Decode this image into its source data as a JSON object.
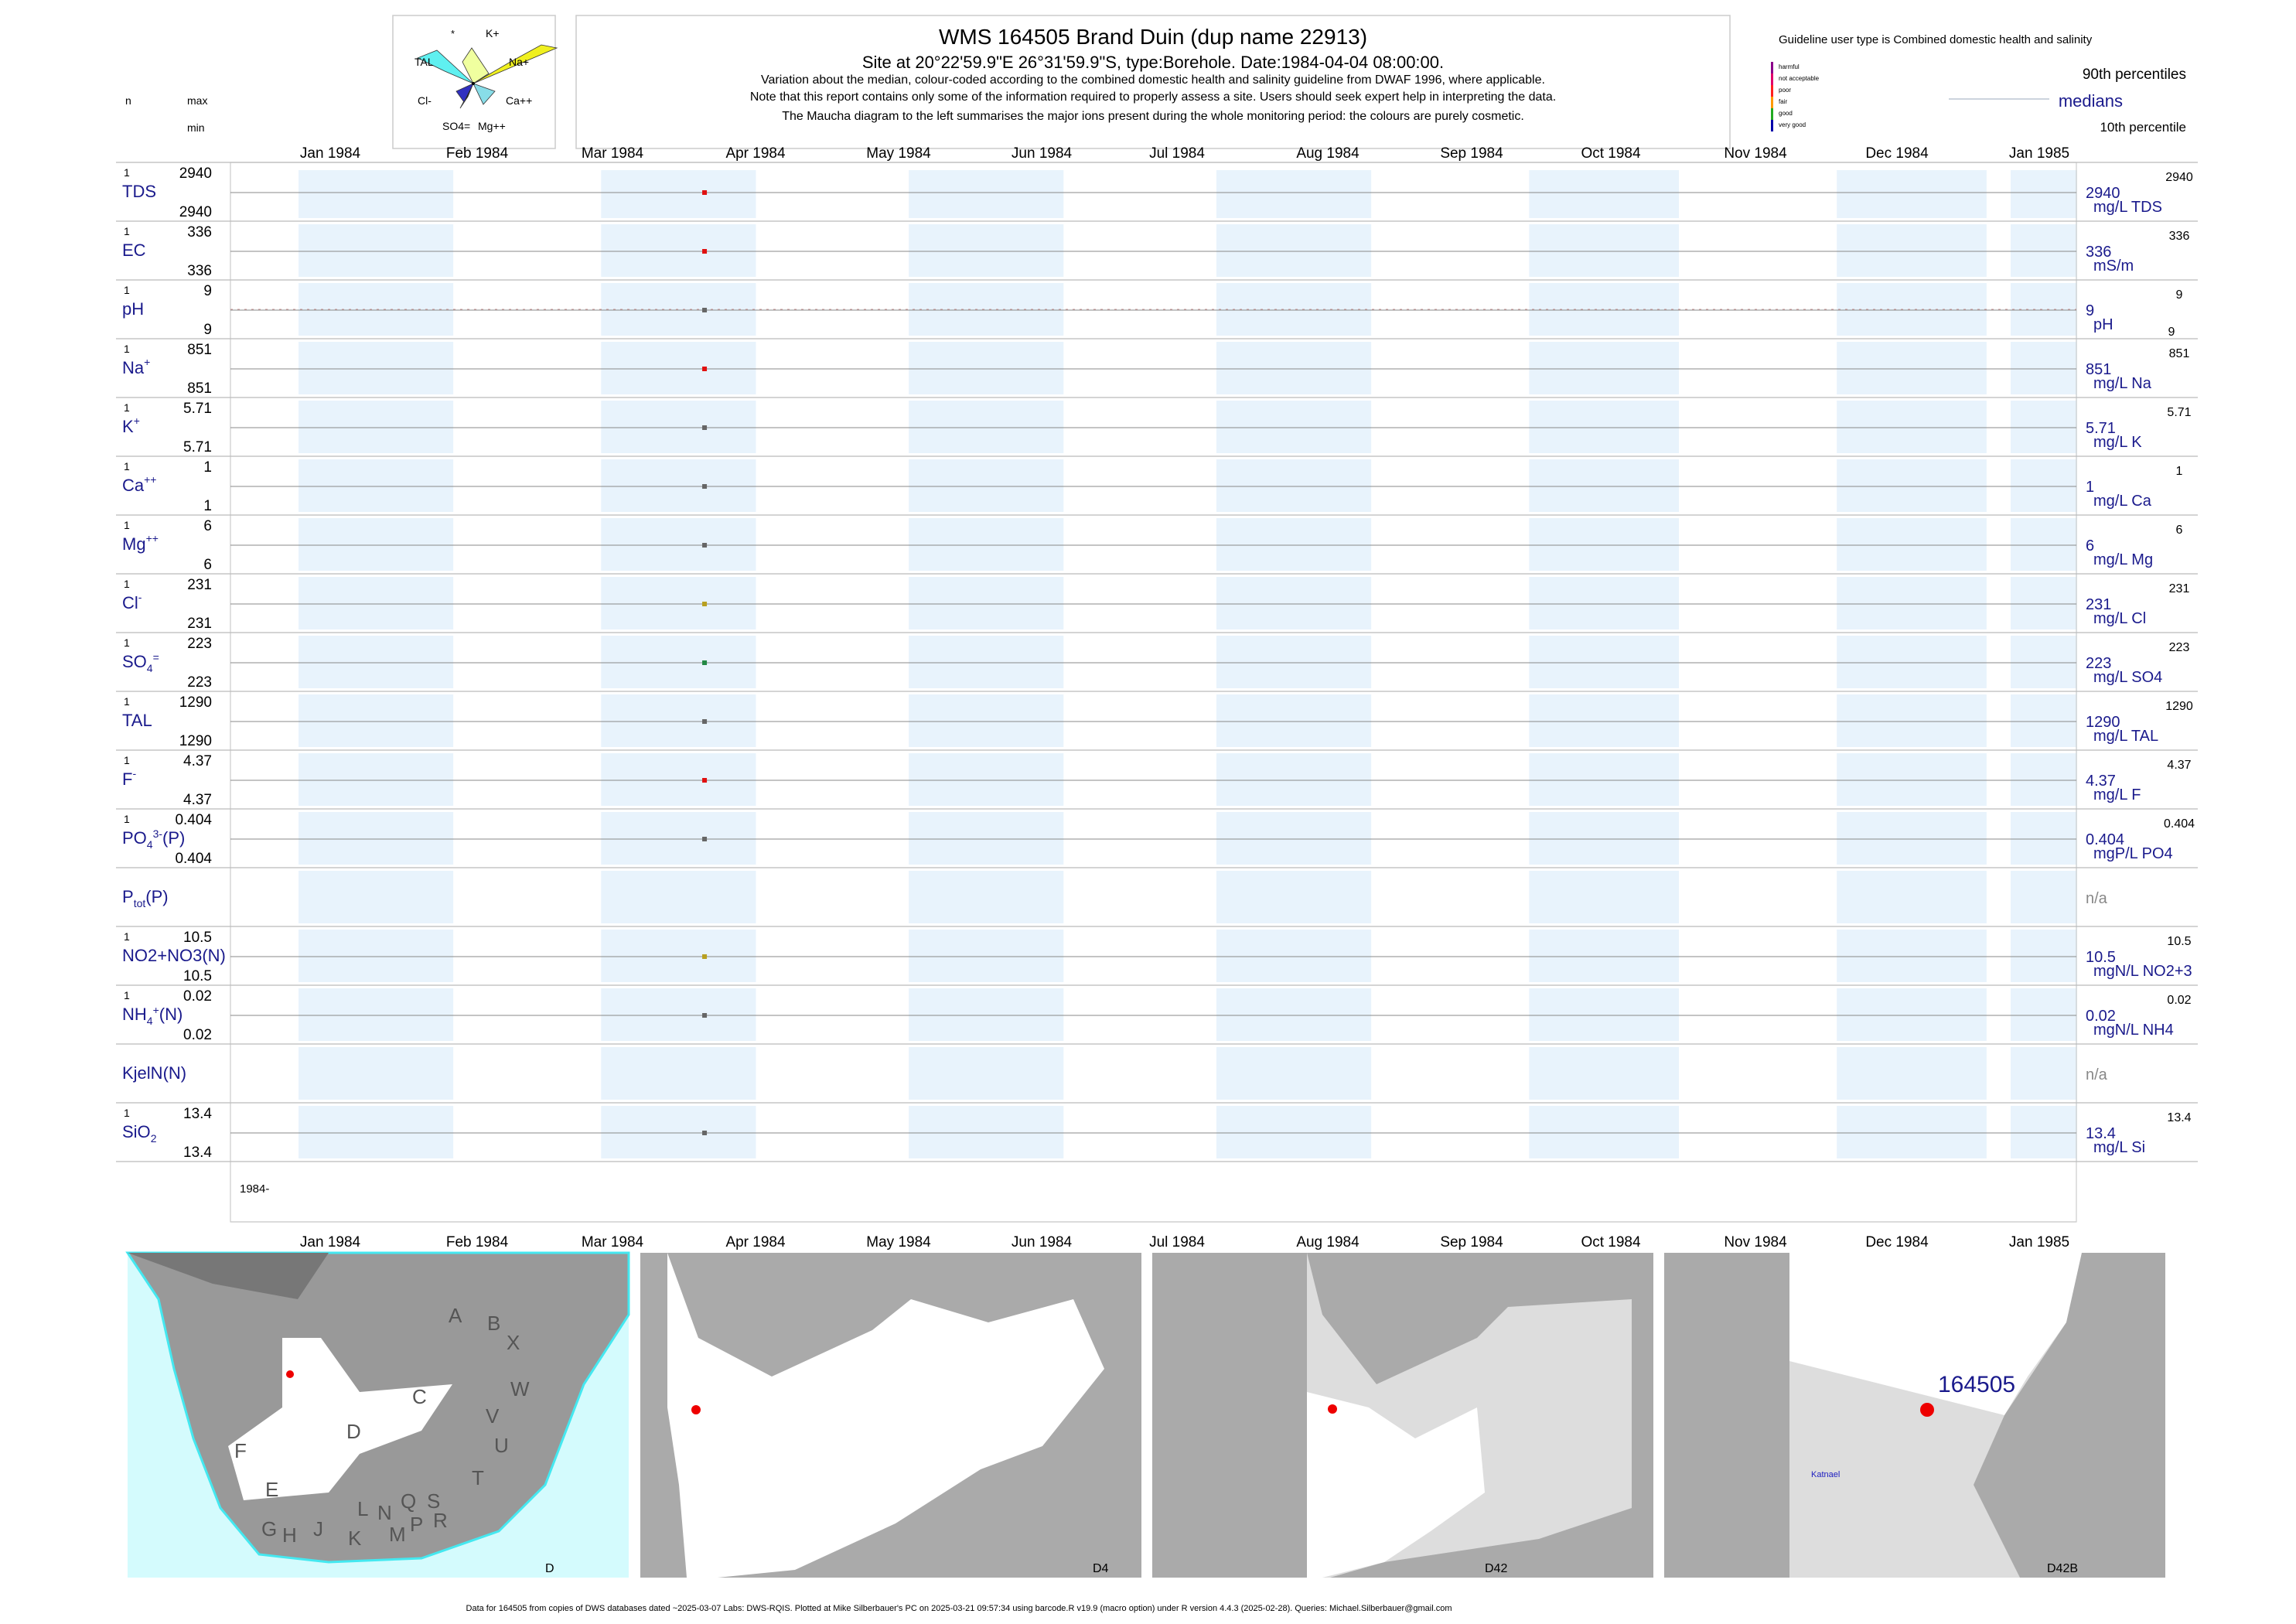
{
  "header": {
    "title": "WMS 164505  Brand Duin (dup name 22913)",
    "subtitle": "Site at 20°22'59.9\"E 26°31'59.9\"S, type:Borehole. Date:1984-04-04 08:00:00.",
    "notes": [
      "Variation about the median,  colour-coded according to the combined domestic health and salinity guideline from DWAF 1996, where applicable.",
      "Note that this report contains only some of the information required to properly assess a site. Users should seek expert help in interpreting the data.",
      "The Maucha diagram to the left summarises the major ions present during the whole monitoring period: the colours are purely cosmetic."
    ]
  },
  "left_header": {
    "n": "n",
    "max": "max",
    "min": "min"
  },
  "maucha": {
    "labels": [
      "*",
      "K+",
      "TAL",
      "Na+",
      "Cl-",
      "Ca++",
      "SO4=",
      "Mg++"
    ]
  },
  "legend": {
    "guideline": "Guideline user type is Combined domestic health and salinity",
    "classes": [
      {
        "label": "harmful",
        "color": "#8b008b"
      },
      {
        "label": "not acceptable",
        "color": "#e0006a"
      },
      {
        "label": "poor",
        "color": "#ff2020"
      },
      {
        "label": "fair",
        "color": "#ff9900"
      },
      {
        "label": "good",
        "color": "#22aa22"
      },
      {
        "label": "very good",
        "color": "#0000aa"
      }
    ],
    "p90": "90th percentiles",
    "medians": "medians",
    "p10": "10th percentile"
  },
  "months": [
    "Jan 1984",
    "Feb 1984",
    "Mar 1984",
    "Apr 1984",
    "May 1984",
    "Jun 1984",
    "Jul 1984",
    "Aug 1984",
    "Sep 1984",
    "Oct 1984",
    "Nov 1984",
    "Dec 1984",
    "Jan 1985"
  ],
  "year_label": "1984-",
  "chart_data": {
    "type": "scatter",
    "x_range": [
      "1984-01-01",
      "1985-01-01"
    ],
    "sample_date": "1984-04-04",
    "series": [
      {
        "label": "TDS",
        "n": "1",
        "max": "2940",
        "min": "2940",
        "value": "2940",
        "unit": "mg/L TDS",
        "p90": "2940",
        "p10": "",
        "color": "#e01010"
      },
      {
        "label": "EC",
        "n": "1",
        "max": "336",
        "min": "336",
        "value": "336",
        "unit": "mS/m",
        "p90": "336",
        "p10": "",
        "color": "#e01010"
      },
      {
        "label": "pH",
        "n": "1",
        "max": "9",
        "min": "9",
        "value": "9",
        "unit": "pH",
        "p90": "9",
        "p10": "9",
        "color": "#666666"
      },
      {
        "label": "Na",
        "sup": "+",
        "n": "1",
        "max": "851",
        "min": "851",
        "value": "851",
        "unit": "mg/L Na",
        "p90": "851",
        "p10": "",
        "color": "#e01010"
      },
      {
        "label": "K",
        "sup": "+",
        "n": "1",
        "max": "5.71",
        "min": "5.71",
        "value": "5.71",
        "unit": "mg/L K",
        "p90": "5.71",
        "p10": "",
        "color": "#666666"
      },
      {
        "label": "Ca",
        "sup": "++",
        "n": "1",
        "max": "1",
        "min": "1",
        "value": "1",
        "unit": "mg/L Ca",
        "p90": "1",
        "p10": "",
        "color": "#666666"
      },
      {
        "label": "Mg",
        "sup": "++",
        "n": "1",
        "max": "6",
        "min": "6",
        "value": "6",
        "unit": "mg/L Mg",
        "p90": "6",
        "p10": "",
        "color": "#666666"
      },
      {
        "label": "Cl",
        "sup": "-",
        "n": "1",
        "max": "231",
        "min": "231",
        "value": "231",
        "unit": "mg/L Cl",
        "p90": "231",
        "p10": "",
        "color": "#b8a020"
      },
      {
        "label": "SO",
        "sub": "4",
        "sup": "=",
        "n": "1",
        "max": "223",
        "min": "223",
        "value": "223",
        "unit": "mg/L SO4",
        "p90": "223",
        "p10": "",
        "color": "#228844"
      },
      {
        "label": "TAL",
        "n": "1",
        "max": "1290",
        "min": "1290",
        "value": "1290",
        "unit": "mg/L TAL",
        "p90": "1290",
        "p10": "",
        "color": "#666666"
      },
      {
        "label": "F",
        "sup": "-",
        "n": "1",
        "max": "4.37",
        "min": "4.37",
        "value": "4.37",
        "unit": "mg/L F",
        "p90": "4.37",
        "p10": "",
        "color": "#e01010"
      },
      {
        "label": "PO",
        "sub": "4",
        "sup": "3-",
        "suffix": "(P)",
        "n": "1",
        "max": "0.404",
        "min": "0.404",
        "value": "0.404",
        "unit": "mgP/L PO4",
        "p90": "0.404",
        "p10": "",
        "color": "#666666"
      },
      {
        "label": "P",
        "sub": "tot",
        "suffix": "(P)",
        "n": "",
        "max": "",
        "min": "",
        "value": "n/a",
        "unit": "",
        "p90": "",
        "p10": "",
        "color": ""
      },
      {
        "label": "NO2+NO3(N)",
        "n": "1",
        "max": "10.5",
        "min": "10.5",
        "value": "10.5",
        "unit": "mgN/L NO2+3",
        "p90": "10.5",
        "p10": "",
        "color": "#b8a020"
      },
      {
        "label": "NH",
        "sub": "4",
        "sup": "+",
        "suffix": "(N)",
        "n": "1",
        "max": "0.02",
        "min": "0.02",
        "value": "0.02",
        "unit": "mgN/L NH4",
        "p90": "0.02",
        "p10": "",
        "color": "#666666"
      },
      {
        "label": "KjelN(N)",
        "n": "",
        "max": "",
        "min": "",
        "value": "n/a",
        "unit": "",
        "p90": "",
        "p10": "",
        "color": ""
      },
      {
        "label": "SiO",
        "sub": "2",
        "n": "1",
        "max": "13.4",
        "min": "13.4",
        "value": "13.4",
        "unit": "mg/L Si",
        "p90": "13.4",
        "p10": "",
        "color": "#666666"
      }
    ]
  },
  "maps": [
    {
      "label": "D",
      "regions": [
        "A",
        "B",
        "X",
        "C",
        "W",
        "V",
        "D",
        "U",
        "F",
        "E",
        "T",
        "G",
        "H",
        "J",
        "L",
        "N",
        "Q",
        "S",
        "K",
        "M",
        "P",
        "R"
      ]
    },
    {
      "label": "D4"
    },
    {
      "label": "D42"
    },
    {
      "label": "D42B",
      "site": "164505",
      "place": "Katnael"
    }
  ],
  "footer": "Data for 164505 from copies of DWS databases dated ~2025-03-07 Labs: DWS-RQIS. Plotted at Mike Silberbauer's PC on 2025-03-21 09:57:34 using barcode.R v19.9 (macro option) under R version 4.4.3 (2025-02-28). Queries: Michael.Silberbauer@gmail.com",
  "colors": {
    "label_blue": "#1a1a8c",
    "band": "#e8f3fc",
    "sea": "#d4fbfd",
    "land_grey": "#a9a9a9"
  }
}
